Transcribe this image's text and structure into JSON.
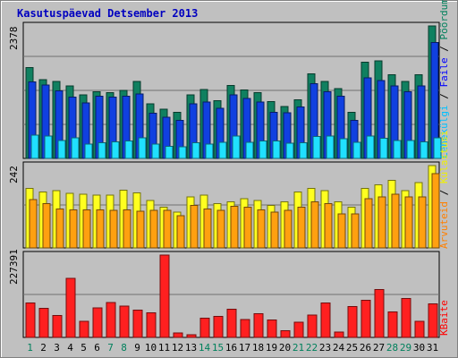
{
  "chart_data": [
    {
      "type": "bar",
      "title": "Kasutuspäevad Detsember 2013",
      "categories": [
        "1",
        "2",
        "3",
        "4",
        "5",
        "6",
        "7",
        "8",
        "9",
        "10",
        "11",
        "12",
        "13",
        "14",
        "15",
        "16",
        "17",
        "18",
        "19",
        "20",
        "21",
        "22",
        "23",
        "24",
        "25",
        "26",
        "27",
        "28",
        "29",
        "30",
        "31"
      ],
      "weekend_days": [
        "1",
        "7",
        "8",
        "14",
        "15",
        "21",
        "22",
        "28",
        "29"
      ],
      "ymax_label": "2378",
      "legend": [
        {
          "key": "hits",
          "name": "Pöördumisi",
          "color": "#00805c"
        },
        {
          "key": "files",
          "name": "Faile",
          "color": "#0000ff"
        },
        {
          "key": "pages",
          "name": "Lehekülgi",
          "color": "#00c0ff"
        }
      ],
      "ylim": [
        0,
        2378
      ],
      "series": [
        {
          "name": "Pöördumisi",
          "color": "#108060",
          "values": [
            1630,
            1410,
            1380,
            1300,
            1140,
            1200,
            1180,
            1220,
            1380,
            980,
            880,
            830,
            1140,
            1240,
            1040,
            1310,
            1230,
            1180,
            1020,
            930,
            1050,
            1520,
            1380,
            1250,
            830,
            1730,
            1750,
            1500,
            1380,
            1500,
            2378
          ]
        },
        {
          "name": "Faile",
          "color": "#1040e0",
          "values": [
            1370,
            1320,
            1210,
            1100,
            1000,
            1120,
            1100,
            1120,
            1160,
            810,
            740,
            680,
            980,
            1010,
            900,
            1140,
            1080,
            1010,
            830,
            820,
            920,
            1340,
            1200,
            1120,
            680,
            1450,
            1400,
            1300,
            1200,
            1300,
            2080
          ]
        },
        {
          "name": "Lehekülgi",
          "color": "#20e0ff",
          "values": [
            420,
            400,
            320,
            370,
            260,
            280,
            300,
            310,
            370,
            260,
            220,
            210,
            280,
            260,
            290,
            400,
            290,
            310,
            310,
            270,
            280,
            390,
            400,
            350,
            290,
            400,
            360,
            320,
            320,
            300,
            370
          ]
        }
      ]
    },
    {
      "type": "bar",
      "ymax_label": "242",
      "legend": [
        {
          "key": "visits",
          "name": "Külastusi",
          "color": "#f0f000"
        },
        {
          "key": "sites",
          "name": "Arvuteid",
          "color": "#ff8000"
        }
      ],
      "ylim": [
        0,
        242
      ],
      "series": [
        {
          "name": "Külastusi",
          "color": "#ffff20",
          "values": [
            175,
            165,
            168,
            160,
            158,
            155,
            155,
            170,
            162,
            140,
            120,
            105,
            150,
            155,
            130,
            135,
            145,
            140,
            125,
            135,
            165,
            175,
            168,
            135,
            120,
            175,
            185,
            198,
            168,
            192,
            242
          ]
        },
        {
          "name": "Arvuteid",
          "color": "#ffa010",
          "values": [
            142,
            130,
            115,
            112,
            112,
            112,
            110,
            112,
            108,
            110,
            110,
            95,
            125,
            115,
            110,
            122,
            120,
            112,
            105,
            110,
            120,
            135,
            130,
            100,
            100,
            145,
            150,
            158,
            150,
            150,
            218
          ]
        }
      ]
    },
    {
      "type": "bar",
      "ymax_label": "227391",
      "legend": [
        {
          "key": "kbytes",
          "name": "KBaite",
          "color": "#ff0000"
        }
      ],
      "ylim": [
        0,
        227391
      ],
      "series": [
        {
          "name": "KBaite",
          "color": "#ff2020",
          "values": [
            95000,
            80000,
            60000,
            163000,
            45000,
            82000,
            97000,
            86000,
            75000,
            68000,
            227391,
            12000,
            7000,
            53000,
            58000,
            78000,
            50000,
            65000,
            48000,
            18000,
            42000,
            62000,
            95000,
            15000,
            85000,
            102000,
            132000,
            70000,
            107000,
            45000,
            93000
          ]
        }
      ]
    }
  ]
}
